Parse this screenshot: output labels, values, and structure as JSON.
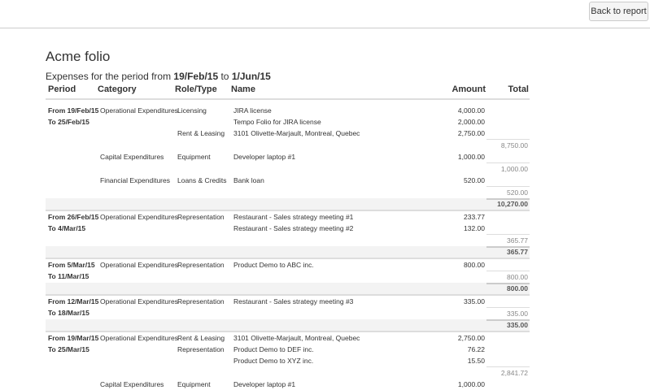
{
  "toolbar": {
    "back_label": "Back to report"
  },
  "title": "Acme folio",
  "subtitle": {
    "prefix": "Expenses for the period from ",
    "from": "19/Feb/15",
    "mid": " to ",
    "to": "1/Jun/15"
  },
  "columns": {
    "period": "Period",
    "category": "Category",
    "role": "Role/Type",
    "name": "Name",
    "amount": "Amount",
    "total": "Total"
  },
  "rows": [
    {
      "type": "item",
      "period": "From 19/Feb/15",
      "category": "Operational Expenditures",
      "role": "Licensing",
      "name": "JIRA license",
      "amount": "4,000.00"
    },
    {
      "type": "item",
      "period": "To 25/Feb/15",
      "name": "Tempo Folio for JIRA license",
      "amount": "2,000.00"
    },
    {
      "type": "item",
      "role": "Rent & Leasing",
      "name": "3101 Olivette-Marjault, Montreal, Quebec",
      "amount": "2,750.00"
    },
    {
      "type": "subtotal",
      "total": "8,750.00"
    },
    {
      "type": "item",
      "category": "Capital Expenditures",
      "role": "Equipment",
      "name": "Developer laptop #1",
      "amount": "1,000.00"
    },
    {
      "type": "subtotal",
      "total": "1,000.00"
    },
    {
      "type": "item",
      "category": "Financial Expenditures",
      "role": "Loans & Credits",
      "name": "Bank loan",
      "amount": "520.00"
    },
    {
      "type": "subtotal",
      "total": "520.00"
    },
    {
      "type": "total",
      "total": "10,270.00"
    },
    {
      "type": "item",
      "period": "From 26/Feb/15",
      "category": "Operational Expenditures",
      "role": "Representation",
      "name": "Restaurant - Sales strategy meeting #1",
      "amount": "233.77"
    },
    {
      "type": "item",
      "period": "To 4/Mar/15",
      "name": "Restaurant - Sales strategy meeting #2",
      "amount": "132.00"
    },
    {
      "type": "subtotal",
      "total": "365.77"
    },
    {
      "type": "total",
      "total": "365.77"
    },
    {
      "type": "item",
      "period": "From 5/Mar/15",
      "category": "Operational Expenditures",
      "role": "Representation",
      "name": "Product Demo to ABC inc.",
      "amount": "800.00"
    },
    {
      "type": "subtotal",
      "period": "To 11/Mar/15",
      "total": "800.00"
    },
    {
      "type": "total",
      "total": "800.00"
    },
    {
      "type": "item",
      "period": "From 12/Mar/15",
      "category": "Operational Expenditures",
      "role": "Representation",
      "name": "Restaurant - Sales strategy meeting #3",
      "amount": "335.00"
    },
    {
      "type": "subtotal",
      "period": "To 18/Mar/15",
      "total": "335.00"
    },
    {
      "type": "total",
      "total": "335.00"
    },
    {
      "type": "item",
      "period": "From 19/Mar/15",
      "category": "Operational Expenditures",
      "role": "Rent & Leasing",
      "name": "3101 Olivette-Marjault, Montreal, Quebec",
      "amount": "2,750.00"
    },
    {
      "type": "item",
      "period": "To 25/Mar/15",
      "role": "Representation",
      "name": "Product Demo to DEF inc.",
      "amount": "76.22"
    },
    {
      "type": "item",
      "name": "Product Demo to XYZ inc.",
      "amount": "15.50"
    },
    {
      "type": "subtotal",
      "total": "2,841.72"
    },
    {
      "type": "item",
      "category": "Capital Expenditures",
      "role": "Equipment",
      "name": "Developer laptop #1",
      "amount": "1,000.00"
    }
  ]
}
